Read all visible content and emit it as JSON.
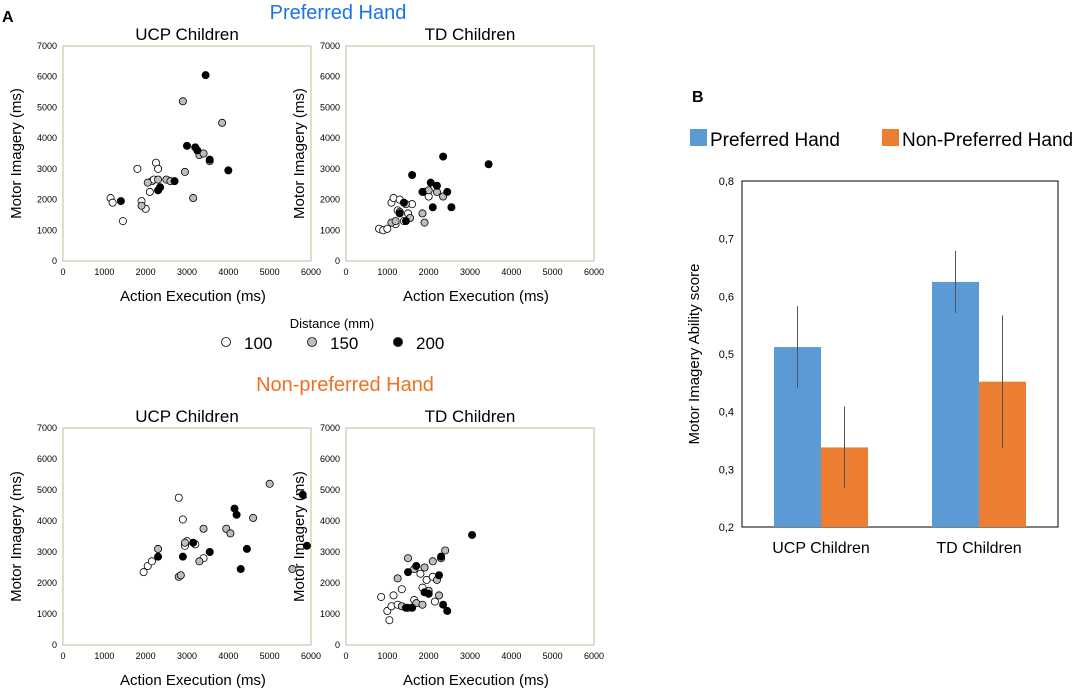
{
  "panel_a_label": "A",
  "panel_b_label": "B",
  "preferred_title": "Preferred Hand",
  "nonpreferred_title": "Non-preferred Hand",
  "colors": {
    "preferred_title": "#1a73e8",
    "nonpreferred_title": "#f07020",
    "bar_preferred": "#5b9bd5",
    "bar_nonpreferred": "#ed7d31",
    "plot_border": "#c9c9a8",
    "dot_100": "#ffffff",
    "dot_150": "#bdbdbd",
    "dot_200": "#000000"
  },
  "distance_legend": {
    "title": "Distance (mm)",
    "items": [
      {
        "label": "100",
        "level": "100"
      },
      {
        "label": "150",
        "level": "150"
      },
      {
        "label": "200",
        "level": "200"
      }
    ]
  },
  "chart_data": [
    {
      "type": "scatter",
      "title": "UCP Children",
      "hand": "Preferred Hand",
      "xlabel": "Action Execution (ms)",
      "ylabel": "Motor Imagery (ms)",
      "xlim": [
        0,
        6000
      ],
      "ylim": [
        0,
        7000
      ],
      "xticks": [
        "0",
        "1000",
        "2000",
        "3000",
        "4000",
        "5000",
        "6000"
      ],
      "yticks": [
        "0",
        "1000",
        "2000",
        "3000",
        "4000",
        "5000",
        "6000",
        "7000"
      ],
      "series": [
        {
          "name": "100",
          "points": [
            [
              1150,
              2050
            ],
            [
              1200,
              1900
            ],
            [
              1450,
              1300
            ],
            [
              1800,
              3000
            ],
            [
              1900,
              1950
            ],
            [
              2000,
              1700
            ],
            [
              2100,
              2250
            ],
            [
              2150,
              2600
            ],
            [
              2200,
              2650
            ],
            [
              2250,
              3200
            ],
            [
              2300,
              3000
            ]
          ]
        },
        {
          "name": "150",
          "points": [
            [
              1900,
              1800
            ],
            [
              2050,
              2550
            ],
            [
              2300,
              2650
            ],
            [
              2500,
              2650
            ],
            [
              2600,
              2600
            ],
            [
              2900,
              5200
            ],
            [
              2950,
              2900
            ],
            [
              3150,
              2050
            ],
            [
              3300,
              3450
            ],
            [
              3400,
              3500
            ],
            [
              3550,
              3250
            ],
            [
              3850,
              4500
            ]
          ]
        },
        {
          "name": "200",
          "points": [
            [
              1400,
              1950
            ],
            [
              2300,
              2300
            ],
            [
              2350,
              2400
            ],
            [
              2700,
              2600
            ],
            [
              3000,
              3750
            ],
            [
              3200,
              3700
            ],
            [
              3250,
              3600
            ],
            [
              3450,
              6050
            ],
            [
              3550,
              3300
            ],
            [
              4000,
              2950
            ]
          ]
        }
      ]
    },
    {
      "type": "scatter",
      "title": "TD Children",
      "hand": "Preferred Hand",
      "xlabel": "Action Execution (ms)",
      "ylabel": "Motor Imagery (ms)",
      "xlim": [
        0,
        6000
      ],
      "ylim": [
        0,
        7000
      ],
      "xticks": [
        "0",
        "1000",
        "2000",
        "3000",
        "4000",
        "5000",
        "6000"
      ],
      "yticks": [
        "0",
        "1000",
        "2000",
        "3000",
        "4000",
        "5000",
        "6000",
        "7000"
      ],
      "series": [
        {
          "name": "100",
          "points": [
            [
              800,
              1050
            ],
            [
              900,
              1000
            ],
            [
              1000,
              1050
            ],
            [
              1100,
              1900
            ],
            [
              1150,
              2050
            ],
            [
              1200,
              1200
            ],
            [
              1250,
              1650
            ],
            [
              1300,
              2000
            ],
            [
              1400,
              1300
            ],
            [
              1500,
              1550
            ],
            [
              1600,
              1850
            ],
            [
              1900,
              2250
            ],
            [
              2000,
              2100
            ]
          ]
        },
        {
          "name": "150",
          "points": [
            [
              1100,
              1250
            ],
            [
              1200,
              1300
            ],
            [
              1300,
              1600
            ],
            [
              1450,
              1850
            ],
            [
              1550,
              1400
            ],
            [
              1850,
              1550
            ],
            [
              1900,
              1250
            ],
            [
              2000,
              2300
            ],
            [
              2200,
              2250
            ],
            [
              2350,
              2100
            ]
          ]
        },
        {
          "name": "200",
          "points": [
            [
              1300,
              1550
            ],
            [
              1400,
              1900
            ],
            [
              1450,
              1300
            ],
            [
              1600,
              2800
            ],
            [
              1850,
              2250
            ],
            [
              2050,
              2550
            ],
            [
              2100,
              1750
            ],
            [
              2200,
              2450
            ],
            [
              2350,
              3400
            ],
            [
              2450,
              2250
            ],
            [
              2550,
              1750
            ],
            [
              3450,
              3150
            ]
          ]
        }
      ]
    },
    {
      "type": "scatter",
      "title": "UCP Children",
      "hand": "Non-preferred Hand",
      "xlabel": "Action Execution (ms)",
      "ylabel": "Motor Imagery (ms)",
      "xlim": [
        0,
        6000
      ],
      "ylim": [
        0,
        7000
      ],
      "xticks": [
        "0",
        "1000",
        "2000",
        "3000",
        "4000",
        "5000",
        "6000"
      ],
      "yticks": [
        "0",
        "1000",
        "2000",
        "3000",
        "4000",
        "5000",
        "6000",
        "7000"
      ],
      "series": [
        {
          "name": "100",
          "points": [
            [
              1950,
              2350
            ],
            [
              2050,
              2550
            ],
            [
              2150,
              2700
            ],
            [
              2800,
              4750
            ],
            [
              2900,
              4050
            ],
            [
              2950,
              3200
            ],
            [
              3000,
              3350
            ],
            [
              3200,
              3250
            ],
            [
              3400,
              2800
            ]
          ]
        },
        {
          "name": "150",
          "points": [
            [
              2300,
              3100
            ],
            [
              2800,
              2200
            ],
            [
              2850,
              2250
            ],
            [
              2950,
              3300
            ],
            [
              3300,
              2700
            ],
            [
              3400,
              3750
            ],
            [
              3950,
              3750
            ],
            [
              4050,
              3600
            ],
            [
              4600,
              4100
            ],
            [
              5000,
              5200
            ],
            [
              5550,
              2450
            ]
          ]
        },
        {
          "name": "200",
          "points": [
            [
              2300,
              2850
            ],
            [
              2900,
              2850
            ],
            [
              3150,
              3300
            ],
            [
              3550,
              3000
            ],
            [
              4150,
              4400
            ],
            [
              4200,
              4200
            ],
            [
              4300,
              2450
            ],
            [
              4450,
              3100
            ],
            [
              5800,
              4850
            ],
            [
              5900,
              3200
            ]
          ]
        }
      ]
    },
    {
      "type": "scatter",
      "title": "TD Children",
      "hand": "Non-preferred Hand",
      "xlabel": "Action Execution (ms)",
      "ylabel": "Motor Imagery (ms)",
      "xlim": [
        0,
        6000
      ],
      "ylim": [
        0,
        7000
      ],
      "xticks": [
        "0",
        "1000",
        "2000",
        "3000",
        "4000",
        "5000",
        "6000"
      ],
      "yticks": [
        "0",
        "1000",
        "2000",
        "3000",
        "4000",
        "5000",
        "6000",
        "7000"
      ],
      "series": [
        {
          "name": "100",
          "points": [
            [
              850,
              1550
            ],
            [
              1000,
              1100
            ],
            [
              1050,
              800
            ],
            [
              1100,
              1250
            ],
            [
              1150,
              1600
            ],
            [
              1250,
              1300
            ],
            [
              1350,
              1800
            ],
            [
              1500,
              1200
            ],
            [
              1650,
              1450
            ],
            [
              1800,
              2300
            ],
            [
              1850,
              1850
            ],
            [
              1950,
              2100
            ],
            [
              2100,
              2200
            ],
            [
              2150,
              1400
            ]
          ]
        },
        {
          "name": "150",
          "points": [
            [
              1250,
              2150
            ],
            [
              1350,
              1250
            ],
            [
              1500,
              2800
            ],
            [
              1650,
              2450
            ],
            [
              1700,
              1350
            ],
            [
              1850,
              1300
            ],
            [
              1900,
              2500
            ],
            [
              2000,
              1750
            ],
            [
              2100,
              2700
            ],
            [
              2200,
              2100
            ],
            [
              2250,
              1600
            ],
            [
              2300,
              2800
            ],
            [
              2400,
              3050
            ]
          ]
        },
        {
          "name": "200",
          "points": [
            [
              1450,
              1200
            ],
            [
              1500,
              2350
            ],
            [
              1600,
              1200
            ],
            [
              1700,
              2550
            ],
            [
              1900,
              1700
            ],
            [
              2000,
              1650
            ],
            [
              2250,
              2250
            ],
            [
              2300,
              2850
            ],
            [
              2350,
              1300
            ],
            [
              2450,
              1100
            ],
            [
              3050,
              3550
            ]
          ]
        }
      ]
    },
    {
      "type": "bar",
      "categories": [
        "UCP Children",
        "TD Children"
      ],
      "series": [
        {
          "name": "Preferred Hand",
          "values": [
            0.512,
            0.625
          ],
          "errors": [
            0.071,
            0.054
          ]
        },
        {
          "name": "Non-Preferred Hand",
          "values": [
            0.338,
            0.452
          ],
          "errors": [
            0.071,
            0.115
          ]
        }
      ],
      "ylabel": "Motor Imagery Ability score",
      "ylim": [
        0.2,
        0.8
      ],
      "yticks": [
        "0,2",
        "0,3",
        "0,4",
        "0,5",
        "0,6",
        "0,7",
        "0,8"
      ],
      "legend": "top"
    }
  ]
}
